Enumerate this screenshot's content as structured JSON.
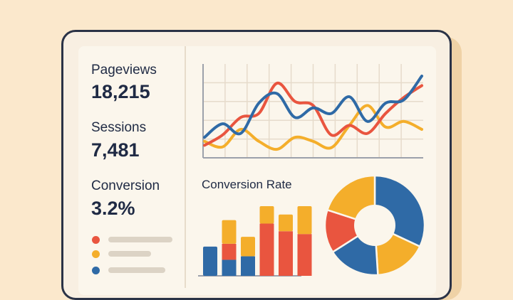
{
  "metrics": [
    {
      "label": "Pageviews",
      "value": "18,215"
    },
    {
      "label": "Sessions",
      "value": "7,481"
    },
    {
      "label": "Conversion",
      "value": "3.2%"
    }
  ],
  "legend": [
    {
      "color": "#e9553f"
    },
    {
      "color": "#f4ae2b"
    },
    {
      "color": "#2f6aa6"
    }
  ],
  "conversion_chart": {
    "title": "Conversion Rate"
  },
  "colors": {
    "red": "#e9553f",
    "yellow": "#f4ae2b",
    "blue": "#2f6aa6",
    "navy": "#1f2a44"
  },
  "chart_data": [
    {
      "type": "line",
      "title": "",
      "grid": true,
      "x": [
        0,
        1,
        2,
        3,
        4,
        5,
        6,
        7,
        8,
        9,
        10,
        11,
        12
      ],
      "ylim": [
        0,
        100
      ],
      "series": [
        {
          "color": "#2f6aa6",
          "values": [
            15,
            32,
            20,
            58,
            70,
            40,
            52,
            45,
            66,
            35,
            58,
            62,
            92
          ]
        },
        {
          "color": "#e9553f",
          "values": [
            5,
            18,
            40,
            45,
            83,
            60,
            55,
            18,
            30,
            20,
            45,
            65,
            80
          ]
        },
        {
          "color": "#f4ae2b",
          "values": [
            10,
            3,
            25,
            10,
            0,
            15,
            10,
            2,
            30,
            55,
            28,
            35,
            25
          ]
        }
      ]
    },
    {
      "type": "bar",
      "stacked": true,
      "ylim": [
        0,
        100
      ],
      "series": [
        {
          "color": "#2f6aa6",
          "values": [
            42,
            23,
            28,
            0,
            0,
            0
          ]
        },
        {
          "color": "#e9553f",
          "values": [
            0,
            23,
            0,
            75,
            64,
            60
          ]
        },
        {
          "color": "#f4ae2b",
          "values": [
            0,
            34,
            28,
            25,
            24,
            40
          ]
        }
      ]
    },
    {
      "type": "pie",
      "donut": true,
      "slices": [
        {
          "color": "#2f6aa6",
          "value": 32
        },
        {
          "color": "#f4ae2b",
          "value": 17
        },
        {
          "color": "#2f6aa6",
          "value": 17
        },
        {
          "color": "#e9553f",
          "value": 14
        },
        {
          "color": "#f4ae2b",
          "value": 20
        }
      ]
    }
  ]
}
